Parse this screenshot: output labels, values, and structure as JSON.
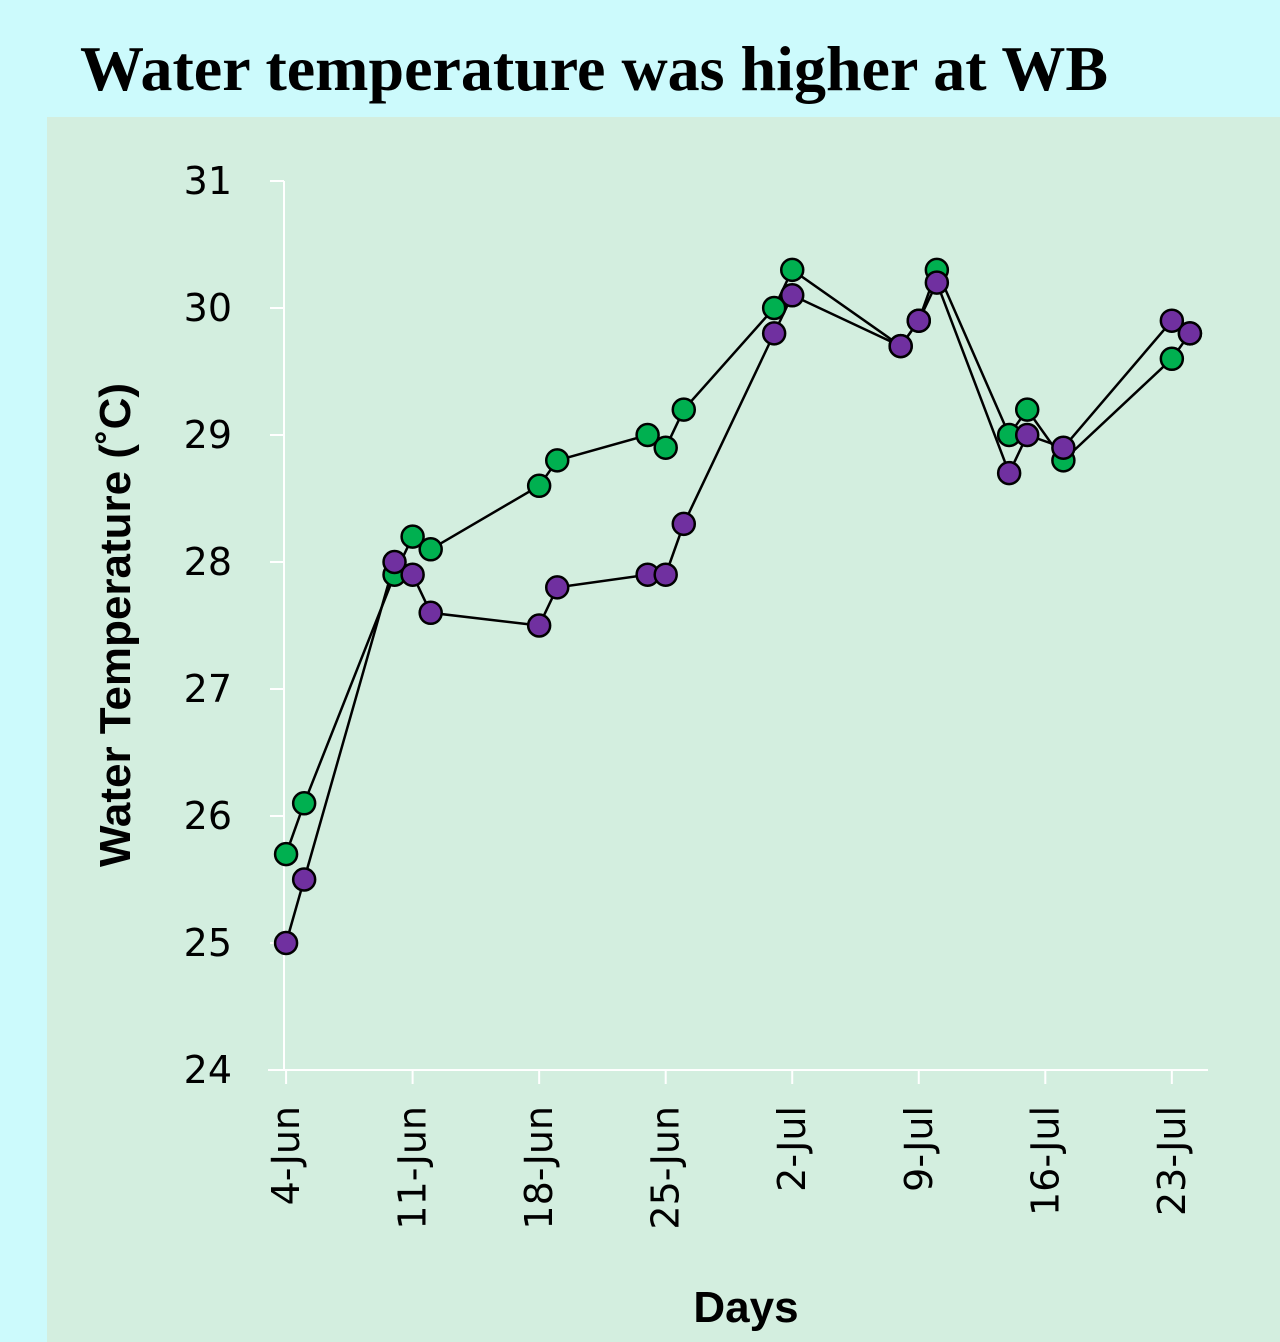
{
  "chart_data": {
    "type": "line",
    "title": "Water temperature was higher at WB",
    "x_label": "Days",
    "y_label": "Water Temperature (˚C)",
    "x": [
      "4-Jun",
      "5-Jun",
      "10-Jun",
      "11-Jun",
      "12-Jun",
      "18-Jun",
      "19-Jun",
      "24-Jun",
      "25-Jun",
      "26-Jun",
      "1-Jul",
      "2-Jul",
      "8-Jul",
      "9-Jul",
      "10-Jul",
      "14-Jul",
      "15-Jul",
      "17-Jul",
      "23-Jul",
      "24-Jul"
    ],
    "series": [
      {
        "color": "#00b050",
        "values": [
          25.7,
          26.1,
          27.9,
          28.2,
          28.1,
          28.6,
          28.8,
          29.0,
          28.9,
          29.2,
          30.0,
          30.3,
          29.7,
          29.9,
          30.3,
          29.0,
          29.2,
          28.8,
          29.6,
          29.8
        ]
      },
      {
        "color": "#7030a0",
        "values": [
          25.0,
          25.5,
          28.0,
          27.9,
          27.6,
          27.5,
          27.8,
          27.9,
          27.9,
          28.3,
          29.8,
          30.1,
          29.7,
          29.9,
          30.2,
          28.7,
          29.0,
          28.9,
          29.9,
          29.8
        ]
      }
    ],
    "xlim": [
      "3-Jun",
      "25-Jul"
    ],
    "xticks": [
      "4-Jun",
      "11-Jun",
      "18-Jun",
      "25-Jun",
      "2-Jul",
      "9-Jul",
      "16-Jul",
      "23-Jul"
    ],
    "ylim": [
      24,
      31
    ],
    "yticks": [
      24,
      25,
      26,
      27,
      28,
      29,
      30,
      31
    ]
  }
}
